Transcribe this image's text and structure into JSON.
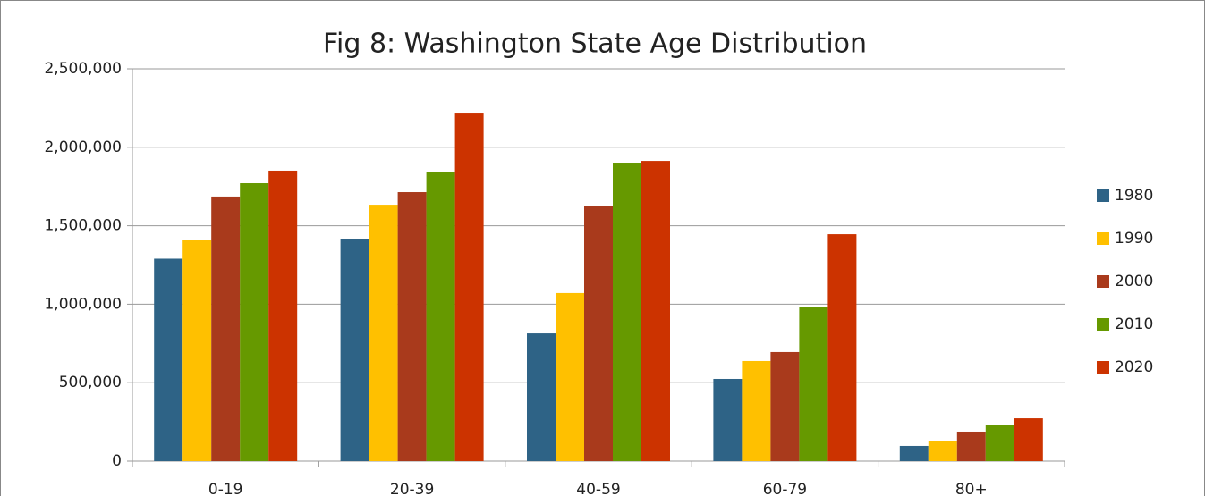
{
  "chart_data": {
    "type": "bar",
    "title": "Fig 8: Washington State Age Distribution",
    "categories": [
      "0-19",
      "20-39",
      "40-59",
      "60-79",
      "80+"
    ],
    "series": [
      {
        "name": "1980",
        "color": "#2e6386",
        "values": [
          1290000,
          1418000,
          814000,
          524000,
          97000
        ]
      },
      {
        "name": "1990",
        "color": "#ffc000",
        "values": [
          1412000,
          1634000,
          1071000,
          638000,
          131000
        ]
      },
      {
        "name": "2000",
        "color": "#a93a1c",
        "values": [
          1686000,
          1714000,
          1623000,
          695000,
          188000
        ]
      },
      {
        "name": "2010",
        "color": "#669900",
        "values": [
          1771000,
          1845000,
          1902000,
          985000,
          233000
        ]
      },
      {
        "name": "2020",
        "color": "#cc3300",
        "values": [
          1851000,
          2215000,
          1913000,
          1446000,
          273000
        ]
      }
    ],
    "ylim": [
      0,
      2500000
    ],
    "yticks": [
      0,
      {
        "value": 500000,
        "label": "500,000"
      },
      {
        "value": 1000000,
        "label": "1,000,000"
      },
      {
        "value": 1500000,
        "label": "1,500,000"
      },
      {
        "value": 2000000,
        "label": "2,000,000"
      },
      {
        "value": 2500000,
        "label": "2,500,000"
      }
    ],
    "grid": true,
    "legend": "right"
  }
}
